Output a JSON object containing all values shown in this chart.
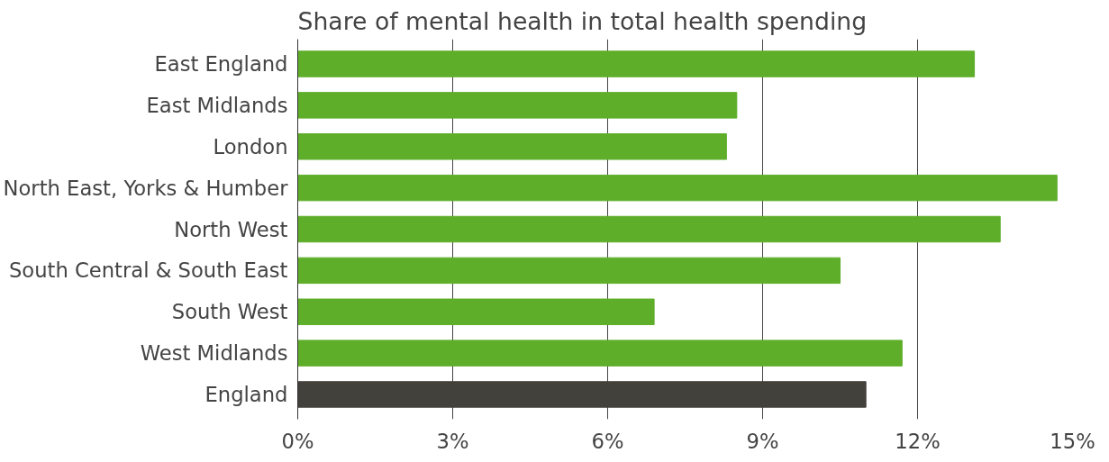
{
  "chart_data": {
    "type": "bar",
    "orientation": "horizontal",
    "title": "Share of mental health in total health spending",
    "categories": [
      "East England",
      "East Midlands",
      "London",
      "North East, Yorks & Humber",
      "North West",
      "South Central & South East",
      "South West",
      "West Midlands",
      "England"
    ],
    "values": [
      13.1,
      8.5,
      8.3,
      14.7,
      13.6,
      10.5,
      6.9,
      11.7,
      11.0
    ],
    "colors": [
      "#5eae2a",
      "#5eae2a",
      "#5eae2a",
      "#5eae2a",
      "#5eae2a",
      "#5eae2a",
      "#5eae2a",
      "#5eae2a",
      "#43413c"
    ],
    "xlim": [
      0,
      15
    ],
    "xticks": [
      {
        "value": 0,
        "label": "0%"
      },
      {
        "value": 3,
        "label": "3%"
      },
      {
        "value": 6,
        "label": "6%"
      },
      {
        "value": 9,
        "label": "9%"
      },
      {
        "value": 12,
        "label": "12%"
      },
      {
        "value": 15,
        "label": "15%"
      }
    ],
    "grid": "x"
  }
}
